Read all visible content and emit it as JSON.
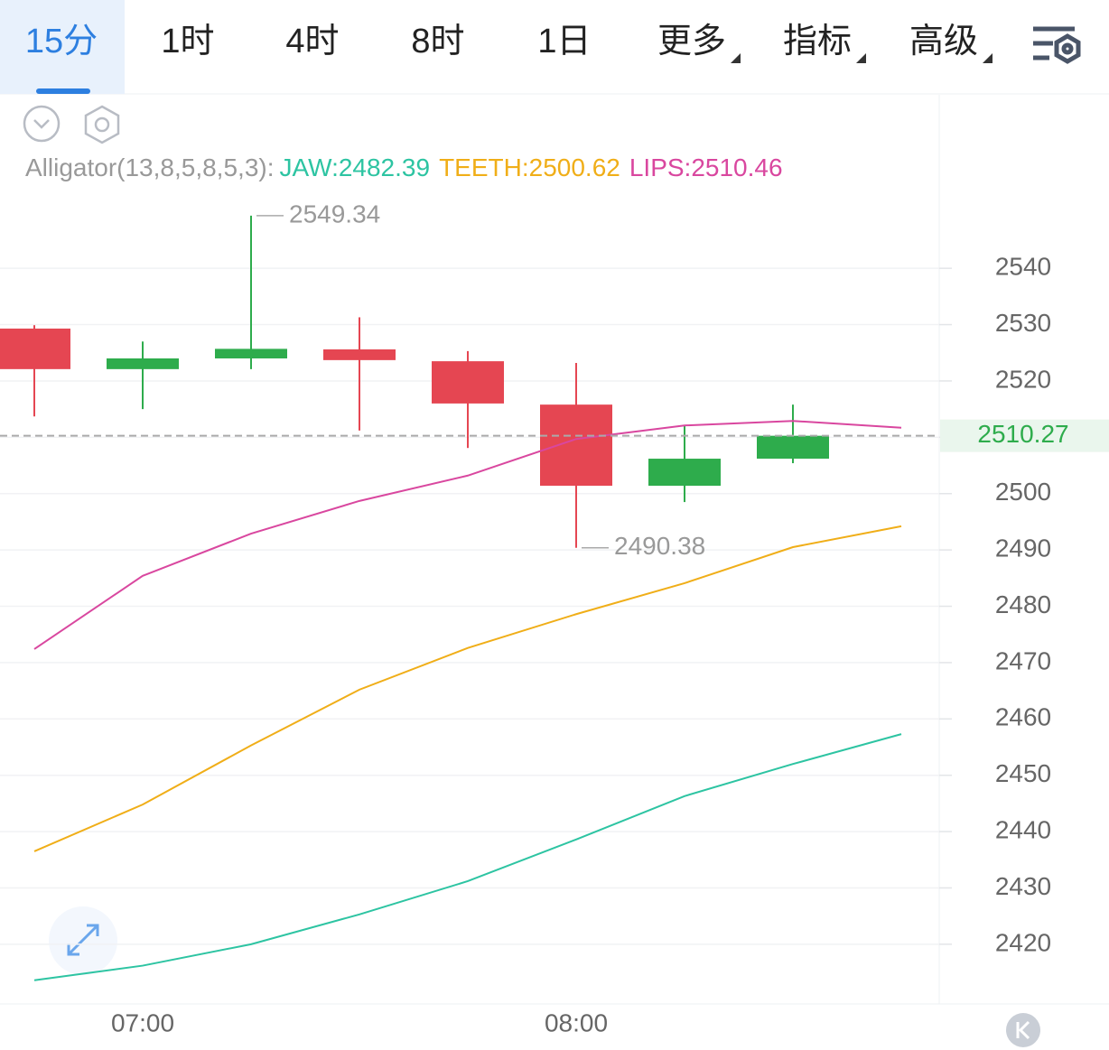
{
  "toolbar": {
    "tabs": [
      "15分",
      "1时",
      "4时",
      "8时",
      "1日",
      "更多",
      "指标",
      "高级"
    ],
    "active": 0
  },
  "chart_data": {
    "type": "candlestick",
    "indicator": "Alligator(13,8,5,8,5,3):",
    "legend_separator": ":",
    "categories": [
      null,
      "07:00",
      null,
      null,
      null,
      "08:00",
      null,
      null,
      null
    ],
    "open": [
      2529.3,
      2522.1,
      2524.0,
      2525.6,
      2523.5,
      2515.8,
      2501.4,
      2506.2,
      null
    ],
    "high": [
      2529.9,
      2527.0,
      2549.34,
      2531.3,
      2525.3,
      2523.2,
      2512.1,
      2515.8,
      null
    ],
    "low": [
      2513.7,
      2515.0,
      2522.1,
      2511.2,
      2508.1,
      2490.38,
      2498.5,
      2505.4,
      null
    ],
    "close": [
      2522.1,
      2524.0,
      2525.7,
      2523.7,
      2516.0,
      2501.4,
      2506.2,
      2510.27,
      null
    ],
    "up_color": "#2eac4c",
    "down_color": "#e54652",
    "lines": [
      {
        "name": "JAW",
        "color": "#2dc4a2",
        "legend_value": 2482.39,
        "values": [
          2413.6,
          2416.2,
          2420.0,
          2425.3,
          2431.2,
          2438.6,
          2446.3,
          2452.0,
          2457.3
        ]
      },
      {
        "name": "TEETH",
        "color": "#f0ae18",
        "legend_value": 2500.62,
        "values": [
          2436.5,
          2444.8,
          2455.3,
          2465.2,
          2472.6,
          2478.6,
          2484.1,
          2490.5,
          2494.2
        ]
      },
      {
        "name": "LIPS",
        "color": "#d9479f",
        "legend_value": 2510.46,
        "values": [
          2472.4,
          2485.4,
          2492.9,
          2498.7,
          2503.2,
          2509.7,
          2512.1,
          2512.9,
          2511.7
        ]
      }
    ],
    "ylim": [
      2409.4,
      2570.8
    ],
    "yticks": [
      2420,
      2430,
      2440,
      2450,
      2460,
      2470,
      2480,
      2490,
      2500,
      2510,
      2520,
      2530,
      2540
    ],
    "grid": true
  }
}
